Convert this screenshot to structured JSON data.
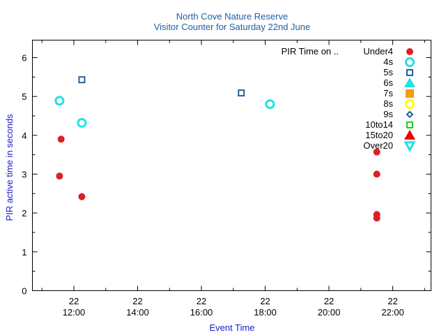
{
  "chart_data": {
    "type": "scatter",
    "title": "North Cove Nature Reserve",
    "subtitle": "Visitor Counter for Saturday 22nd June",
    "xlabel": "Event Time",
    "ylabel": "PIR active time in seconds",
    "xlim": [
      10.7,
      23.2
    ],
    "ylim": [
      0,
      6.45
    ],
    "y_ticks": [
      0,
      1,
      2,
      3,
      4,
      5,
      6
    ],
    "x_ticks": [
      {
        "value": 12,
        "day": "22",
        "time": "12:00"
      },
      {
        "value": 14,
        "day": "22",
        "time": "14:00"
      },
      {
        "value": 16,
        "day": "22",
        "time": "16:00"
      },
      {
        "value": 18,
        "day": "22",
        "time": "18:00"
      },
      {
        "value": 20,
        "day": "22",
        "time": "20:00"
      },
      {
        "value": 22,
        "day": "22",
        "time": "22:00"
      }
    ],
    "grid": false,
    "legend_position": "top-right",
    "legend_title": "PIR Time on ..",
    "series": [
      {
        "name": "Under4",
        "marker": "filled-circle",
        "color": "#dd1f26",
        "points": [
          [
            11.55,
            2.95
          ],
          [
            11.6,
            3.9
          ],
          [
            12.25,
            2.42
          ],
          [
            21.5,
            3.57
          ],
          [
            21.5,
            3.0
          ],
          [
            21.5,
            1.96
          ],
          [
            21.5,
            1.87
          ]
        ]
      },
      {
        "name": "4s",
        "marker": "open-circle",
        "color": "#22e0e8",
        "points": [
          [
            11.55,
            4.89
          ],
          [
            12.25,
            4.32
          ],
          [
            18.15,
            4.8
          ]
        ]
      },
      {
        "name": "5s",
        "marker": "open-square",
        "color": "#1f5fa0",
        "points": [
          [
            12.25,
            5.43
          ],
          [
            17.25,
            5.09
          ]
        ]
      },
      {
        "name": "6s",
        "marker": "filled-triangle-up",
        "color": "#22e0e8",
        "points": []
      },
      {
        "name": "7s",
        "marker": "filled-square",
        "color": "#f0a000",
        "points": []
      },
      {
        "name": "8s",
        "marker": "open-circle",
        "color": "#ffff00",
        "points": []
      },
      {
        "name": "9s",
        "marker": "open-diamond",
        "color": "#1f5fa0",
        "points": []
      },
      {
        "name": "10to14",
        "marker": "open-square",
        "color": "#22cc22",
        "points": []
      },
      {
        "name": "15to20",
        "marker": "filled-triangle-up",
        "color": "#ee0000",
        "points": []
      },
      {
        "name": "Over20",
        "marker": "open-triangle-down",
        "color": "#22e0e8",
        "points": []
      }
    ]
  }
}
